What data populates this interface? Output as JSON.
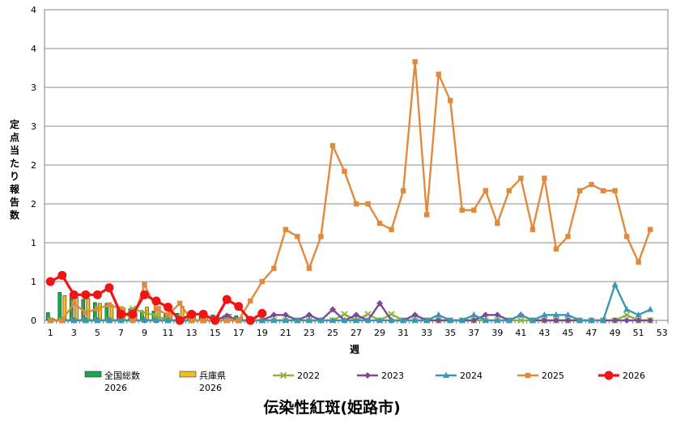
{
  "chart_data": {
    "type": "bar+line",
    "title": "伝染性紅斑(姫路市)",
    "xlabel": "週",
    "ylabel": "定点当たり報告数",
    "ylim": [
      0,
      4
    ],
    "y_tick_labels": [
      "0",
      "1",
      "1",
      "2",
      "2",
      "3",
      "3",
      "4"
    ],
    "y_tick_values": [
      0,
      0.5,
      1,
      1.5,
      2,
      2.5,
      3,
      3.5
    ],
    "y_top_label": "4",
    "x_tick_labels": [
      "1",
      "3",
      "5",
      "7",
      "9",
      "11",
      "13",
      "15",
      "17",
      "19",
      "21",
      "23",
      "25",
      "27",
      "29",
      "31",
      "33",
      "35",
      "37",
      "39",
      "41",
      "43",
      "45",
      "47",
      "49",
      "51",
      "53"
    ],
    "grid": true,
    "legend_position": "bottom",
    "bars": [
      {
        "name": "全国総数\n2026",
        "label_line1": "全国総数",
        "label_line2": "2026",
        "color": "#19a84c",
        "values": [
          0.1,
          0.36,
          0.3,
          0.27,
          0.23,
          0.22,
          0.17,
          0.15,
          0.11,
          0.12,
          0.1,
          0.09,
          0.08,
          0.07,
          0.07,
          0.06,
          0.06,
          0.05
        ]
      },
      {
        "name": "兵庫県\n2026",
        "label_line1": "兵庫県",
        "label_line2": "2026",
        "color": "#f2bd1d",
        "values": [
          0.02,
          0.32,
          0.3,
          0.28,
          0.22,
          0.2,
          0.16,
          0.1,
          0.17,
          0.18,
          0.12,
          0.18,
          0.1,
          0.06,
          0.06,
          0.08,
          0.04,
          0.04
        ]
      }
    ],
    "series": [
      {
        "name": "2022",
        "color": "#8db33a",
        "marker": "x",
        "values": [
          0,
          0,
          0,
          0,
          0,
          0,
          0,
          0.15,
          0.1,
          0.06,
          0,
          0,
          0,
          0,
          0,
          0,
          0,
          0,
          0,
          0,
          0,
          0,
          0,
          0,
          0,
          0.08,
          0,
          0.08,
          0,
          0.08,
          0,
          0,
          0,
          0,
          0,
          0,
          0,
          0,
          0,
          0,
          0,
          0,
          0,
          0,
          0,
          0,
          0,
          0,
          0,
          0.07,
          0,
          0
        ]
      },
      {
        "name": "2023",
        "color": "#7a4a97",
        "marker": "diamond",
        "values": [
          0,
          0,
          0,
          0,
          0,
          0,
          0,
          0,
          0,
          0,
          0,
          0,
          0,
          0,
          0,
          0.06,
          0,
          0,
          0,
          0.07,
          0.07,
          0,
          0.07,
          0,
          0.14,
          0,
          0.07,
          0,
          0.22,
          0,
          0,
          0.07,
          0,
          0,
          0,
          0,
          0,
          0.07,
          0.07,
          0,
          0.07,
          0,
          0,
          0,
          0,
          0,
          0,
          0,
          0,
          0,
          0,
          0
        ]
      },
      {
        "name": "2024",
        "color": "#3a97b5",
        "marker": "triangle",
        "values": [
          0,
          0,
          0,
          0,
          0,
          0,
          0,
          0,
          0,
          0,
          0,
          0,
          0,
          0,
          0,
          0,
          0,
          0,
          0,
          0,
          0,
          0,
          0,
          0,
          0,
          0,
          0,
          0,
          0,
          0,
          0,
          0,
          0,
          0.07,
          0,
          0,
          0.07,
          0,
          0,
          0,
          0.07,
          0,
          0.07,
          0.07,
          0.07,
          0,
          0,
          0,
          0.46,
          0.14,
          0.07,
          0.14
        ]
      },
      {
        "name": "2025",
        "color": "#e18a3b",
        "marker": "square",
        "values": [
          0,
          0,
          0.22,
          0.1,
          0.15,
          0.2,
          0.15,
          0,
          0.46,
          0.15,
          0.07,
          0.22,
          0,
          0,
          0,
          0,
          0,
          0.25,
          0.5,
          0.67,
          1.17,
          1.08,
          0.67,
          1.08,
          2.25,
          1.92,
          1.5,
          1.5,
          1.25,
          1.17,
          1.67,
          3.33,
          1.36,
          3.17,
          2.83,
          1.42,
          1.42,
          1.67,
          1.25,
          1.67,
          1.83,
          1.17,
          1.83,
          0.92,
          1.08,
          1.67,
          1.75,
          1.67,
          1.67,
          1.08,
          0.75,
          1.17
        ]
      },
      {
        "name": "2026",
        "color": "#f21414",
        "marker": "circle",
        "values": [
          0.5,
          0.58,
          0.33,
          0.33,
          0.33,
          0.42,
          0.08,
          0.08,
          0.33,
          0.25,
          0.17,
          0,
          0.08,
          0.08,
          0,
          0.27,
          0.18,
          0,
          0.09
        ]
      }
    ]
  }
}
